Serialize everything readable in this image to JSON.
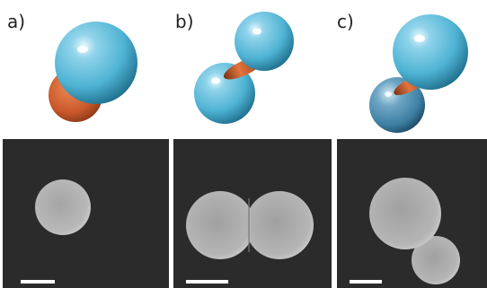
{
  "figure": {
    "panels": [
      {
        "label": "a)",
        "model_icon": "patchy-particle-model-icon",
        "micrograph_icon": "single-sphere-sem-icon"
      },
      {
        "label": "b)",
        "model_icon": "symmetric-dumbbell-model-icon",
        "micrograph_icon": "symmetric-dumbbell-sem-icon"
      },
      {
        "label": "c)",
        "model_icon": "asymmetric-dumbbell-model-icon",
        "micrograph_icon": "asymmetric-dumbbell-sem-icon"
      }
    ],
    "colors": {
      "blue_lobe": "#4fb3d4",
      "copper_patch": "#c8572a",
      "micrograph_background": "#2b2b2b",
      "scale_bar": "#ffffff"
    }
  }
}
